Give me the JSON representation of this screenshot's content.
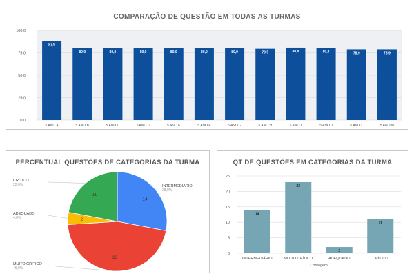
{
  "colors": {
    "top_bar": "#0e4f9c",
    "plot_bg": "#eef0f4",
    "grid": "#d0d4da",
    "axis_text": "#555555",
    "bottom_bar": "#76a5b4",
    "pie_blue": "#4285f4",
    "pie_red": "#ea4335",
    "pie_yellow": "#fbbc04",
    "pie_green": "#34a853"
  },
  "chart_data": [
    {
      "type": "bar",
      "title": "COMPARAÇÃO DE QUESTÃO EM TODAS AS TURMAS",
      "categories": [
        "5 ANO A",
        "5 ANO B",
        "5 ANO C",
        "5 ANO D",
        "5 ANO E",
        "5 ANO F",
        "5 ANO G",
        "5 ANO H",
        "5 ANO I",
        "5 ANO J",
        "5 ANO L",
        "5 ANO M"
      ],
      "values": [
        87.9,
        80.0,
        80.0,
        80.0,
        80.0,
        80.0,
        80.0,
        79.5,
        80.8,
        80.4,
        78.9,
        78.9
      ],
      "value_labels": [
        "87,9",
        "80,0",
        "80,0",
        "80,0",
        "80,0",
        "80,0",
        "80,0",
        "79,5",
        "80,8",
        "80,4",
        "78,9",
        "78,9"
      ],
      "yticks": [
        "0,0",
        "25,0",
        "50,0",
        "75,0",
        "100,0"
      ],
      "ylim": [
        0,
        100
      ],
      "grid": true
    },
    {
      "type": "pie",
      "title": "PERCENTUAL QUESTÕES DE CATEGORIAS DA TURMA",
      "slices": [
        {
          "name": "INTERMEDIÁRIO",
          "value": 14,
          "percent": "28,0%",
          "color_key": "pie_blue"
        },
        {
          "name": "MUITO CRÍTICO",
          "value": 23,
          "percent": "46,0%",
          "color_key": "pie_red"
        },
        {
          "name": "ADEQUADO",
          "value": 2,
          "percent": "4,0%",
          "color_key": "pie_yellow"
        },
        {
          "name": "CRÍTICO",
          "value": 11,
          "percent": "22,0%",
          "color_key": "pie_green"
        }
      ]
    },
    {
      "type": "bar",
      "title": "QT DE QUESTÕES EM CATEGORIAS DA TURMA",
      "categories": [
        "INTERMEDIÁRIO",
        "MUITO CRÍTICO",
        "ADEQUADO",
        "CRÍTICO"
      ],
      "values": [
        14,
        23,
        2,
        11
      ],
      "xlabel": "Contagem",
      "yticks": [
        "0",
        "5",
        "10",
        "15",
        "20",
        "25"
      ],
      "ylim": [
        0,
        25
      ],
      "grid": true
    }
  ]
}
